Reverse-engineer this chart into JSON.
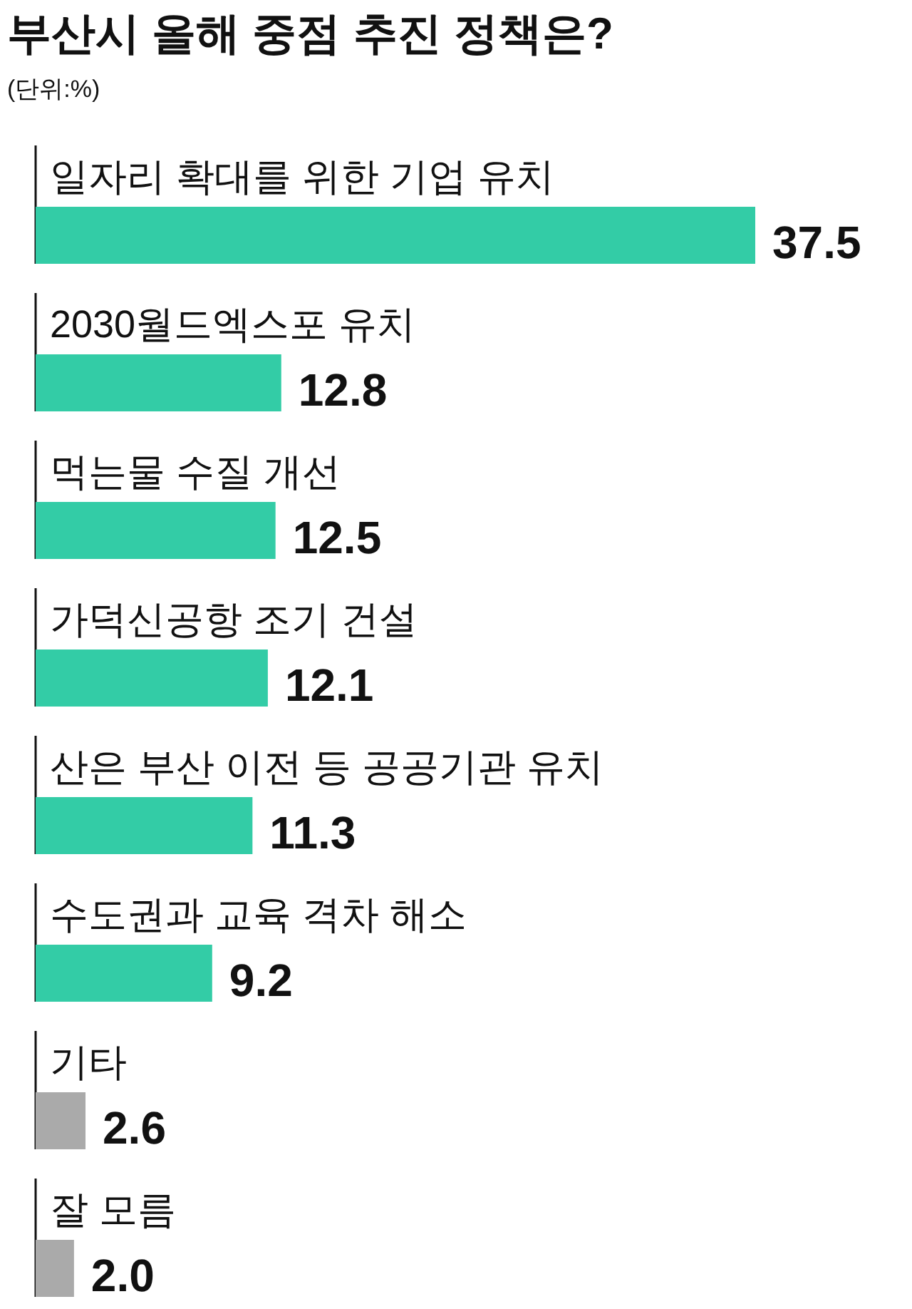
{
  "chart_data": {
    "type": "bar",
    "orientation": "horizontal",
    "title": "부산시 올해 중점 추진 정책은?",
    "subtitle": "(단위:%)",
    "categories": [
      "일자리 확대를 위한 기업 유치",
      "2030월드엑스포 유치",
      "먹는물 수질 개선",
      "가덕신공항 조기 건설",
      "산은 부산 이전 등 공공기관 유치",
      "수도권과 교육 격차 해소",
      "기타",
      "잘 모름"
    ],
    "values": [
      37.5,
      12.8,
      12.5,
      12.1,
      11.3,
      9.2,
      2.6,
      2.0
    ],
    "colors": [
      "#33cca6",
      "#33cca6",
      "#33cca6",
      "#33cca6",
      "#33cca6",
      "#33cca6",
      "#aaaaaa",
      "#aaaaaa"
    ],
    "value_labels": [
      "37.5",
      "12.8",
      "12.5",
      "12.1",
      "11.3",
      "9.2",
      "2.6",
      "2.0"
    ]
  }
}
